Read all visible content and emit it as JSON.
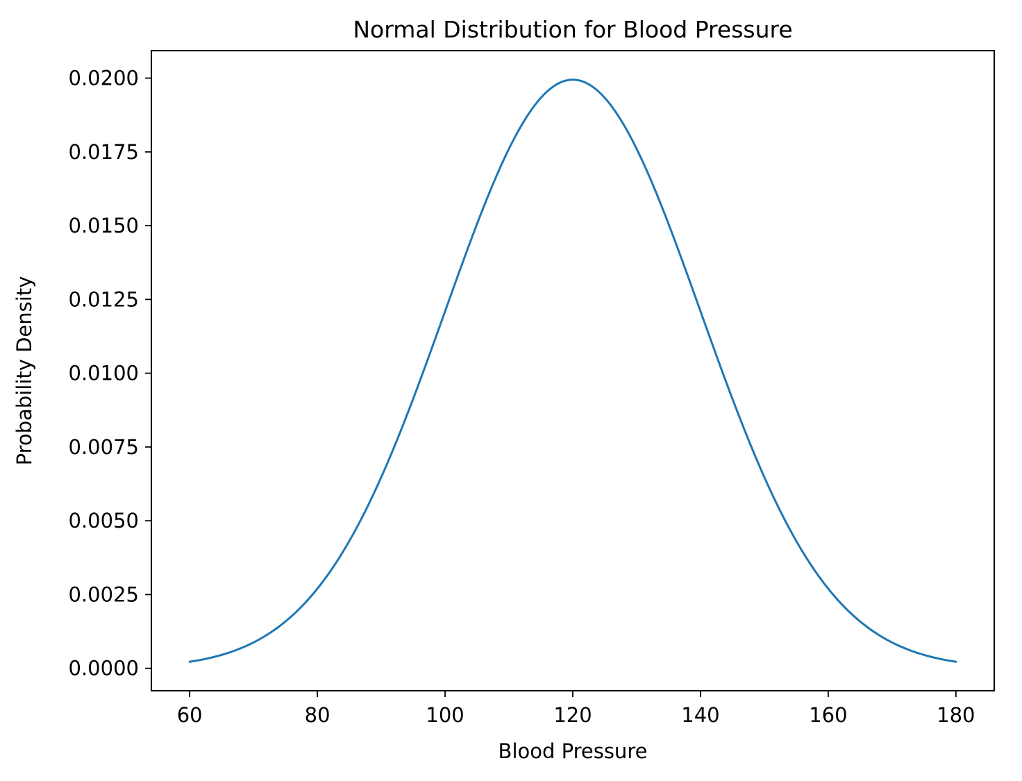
{
  "chart_data": {
    "type": "line",
    "title": "Normal Distribution for Blood Pressure",
    "xlabel": "Blood Pressure",
    "ylabel": "Probability Density",
    "series": [
      {
        "name": "normal-pdf",
        "distribution": "normal",
        "mean": 120,
        "std": 20,
        "x_start": 60,
        "x_end": 180,
        "peak_value": 0.0199,
        "color": "#1f77b4",
        "line_width": 3
      }
    ],
    "x_ticks": {
      "values": [
        60,
        80,
        100,
        120,
        140,
        160,
        180
      ],
      "labels": [
        "60",
        "80",
        "100",
        "120",
        "140",
        "160",
        "180"
      ]
    },
    "y_ticks": {
      "values": [
        0.0,
        0.0025,
        0.005,
        0.0075,
        0.01,
        0.0125,
        0.015,
        0.0175,
        0.02
      ],
      "labels": [
        "0.0000",
        "0.0025",
        "0.0050",
        "0.0075",
        "0.0100",
        "0.0125",
        "0.0150",
        "0.0175",
        "0.0200"
      ]
    },
    "xlim": [
      54,
      186
    ],
    "ylim": [
      -0.00076,
      0.02093
    ],
    "grid": false,
    "legend": "none",
    "spine_color": "#000000",
    "background_color": "#ffffff"
  }
}
